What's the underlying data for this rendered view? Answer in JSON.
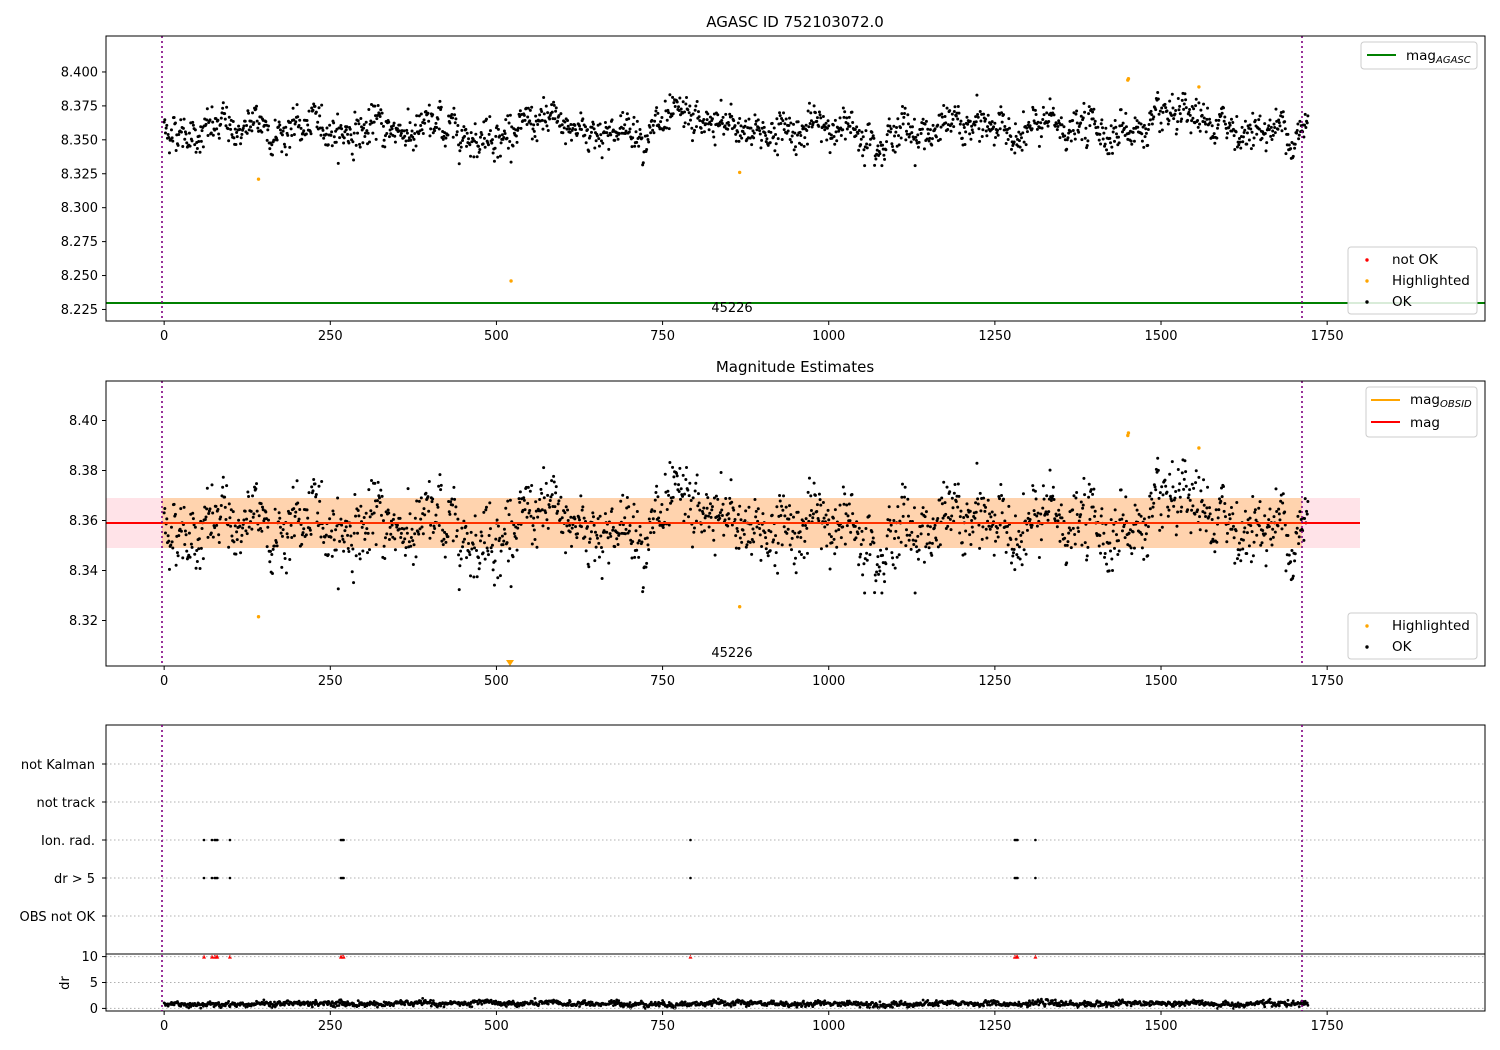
{
  "chart_data": [
    {
      "type": "scatter",
      "title": "AGASC ID 752103072.0",
      "xlim": [
        -87.5,
        1987.5
      ],
      "ylim": [
        8.2165,
        8.4265
      ],
      "xticks": [
        "0",
        "250",
        "500",
        "750",
        "1000",
        "1250",
        "1500",
        "1750"
      ],
      "yticks": [
        "8.225",
        "8.250",
        "8.275",
        "8.300",
        "8.325",
        "8.350",
        "8.375",
        "8.400"
      ],
      "ytick_values": [
        8.225,
        8.25,
        8.275,
        8.3,
        8.325,
        8.35,
        8.375,
        8.4
      ],
      "obs_boundaries": [
        0,
        1722
      ],
      "obs_label": {
        "text": "45226",
        "x": 861
      },
      "baseline": {
        "name": "mag",
        "subscript": "AGASC",
        "y": 8.229,
        "color": "#008000"
      },
      "highlighted_points": [
        [
          142,
          8.321
        ],
        [
          522,
          8.246
        ],
        [
          866,
          8.326
        ],
        [
          1450,
          8.394
        ],
        [
          1451,
          8.395
        ],
        [
          1557,
          8.389
        ]
      ],
      "ok_series": {
        "n": 1722,
        "mean": 8.358,
        "noise": 0.008,
        "ymin": 8.331,
        "ymax": 8.386
      },
      "legend_lines": [
        {
          "label": "mag",
          "subscript": "AGASC",
          "color": "#008000"
        }
      ],
      "legend_points": [
        {
          "label": "not OK",
          "color": "#ff0000"
        },
        {
          "label": "Highlighted",
          "color": "#ffa500"
        },
        {
          "label": "OK",
          "color": "#000000"
        }
      ]
    },
    {
      "type": "scatter",
      "title": "Magnitude Estimates",
      "xlim": [
        -87.5,
        1987.5
      ],
      "ylim": [
        8.3018,
        8.4158
      ],
      "xticks": [
        "0",
        "250",
        "500",
        "750",
        "1000",
        "1250",
        "1500",
        "1750"
      ],
      "yticks": [
        "8.32",
        "8.34",
        "8.36",
        "8.38",
        "8.40"
      ],
      "ytick_values": [
        8.32,
        8.34,
        8.36,
        8.38,
        8.4
      ],
      "obs_boundaries": [
        0,
        1722
      ],
      "obs_label": {
        "text": "45226",
        "x": 861
      },
      "mean_mag": {
        "name": "mag",
        "y": 8.3585,
        "band": [
          8.3487,
          8.3683
        ],
        "x_extent": [
          -87.5,
          1810
        ],
        "color": "#ff0000"
      },
      "obsid_band": {
        "name": "mag",
        "subscript": "OBSID",
        "x_extent": [
          0,
          1722
        ],
        "color": "#ffa500"
      },
      "highlighted_points": [
        [
          142,
          8.3215
        ],
        [
          866,
          8.3255
        ],
        [
          1450,
          8.394
        ],
        [
          1451,
          8.395
        ],
        [
          1557,
          8.389
        ]
      ],
      "off_scale_marker": {
        "x": 522,
        "direction": "down"
      },
      "legend_lines": [
        {
          "label": "mag",
          "subscript": "OBSID",
          "color": "#ffa500"
        },
        {
          "label": "mag",
          "subscript": "",
          "color": "#ff0000"
        }
      ],
      "legend_points": [
        {
          "label": "Highlighted",
          "color": "#ffa500"
        },
        {
          "label": "OK",
          "color": "#000000"
        }
      ]
    },
    {
      "type": "scatter",
      "title": "",
      "xlim": [
        -87.5,
        1987.5
      ],
      "xticks": [
        "0",
        "250",
        "500",
        "750",
        "1000",
        "1250",
        "1500",
        "1750"
      ],
      "flag_rows": [
        "not Kalman",
        "not track",
        "Ion. rad.",
        "dr > 5",
        "OBS not OK"
      ],
      "flag_points": {
        "Ion. rad.": [
          60,
          72,
          76,
          78,
          80,
          99,
          266,
          268,
          270,
          792,
          1280,
          1282,
          1284,
          1311
        ],
        "dr > 5": [
          60,
          72,
          76,
          78,
          80,
          99,
          266,
          268,
          270,
          792,
          1280,
          1282,
          1284,
          1311
        ]
      },
      "dr_ylabel": "dr",
      "dr_ylim": [
        -0.5,
        10.5
      ],
      "dr_yticks": [
        "0",
        "5",
        "10"
      ],
      "dr_ytick_values": [
        0,
        5,
        10
      ],
      "dr_clipped_x": [
        60,
        72,
        76,
        78,
        80,
        99,
        266,
        268,
        270,
        792,
        1280,
        1282,
        1284,
        1311
      ],
      "dr_series": {
        "n": 1722,
        "mean": 0.9,
        "noise": 0.25
      },
      "obs_boundaries": [
        0,
        1722
      ]
    }
  ]
}
